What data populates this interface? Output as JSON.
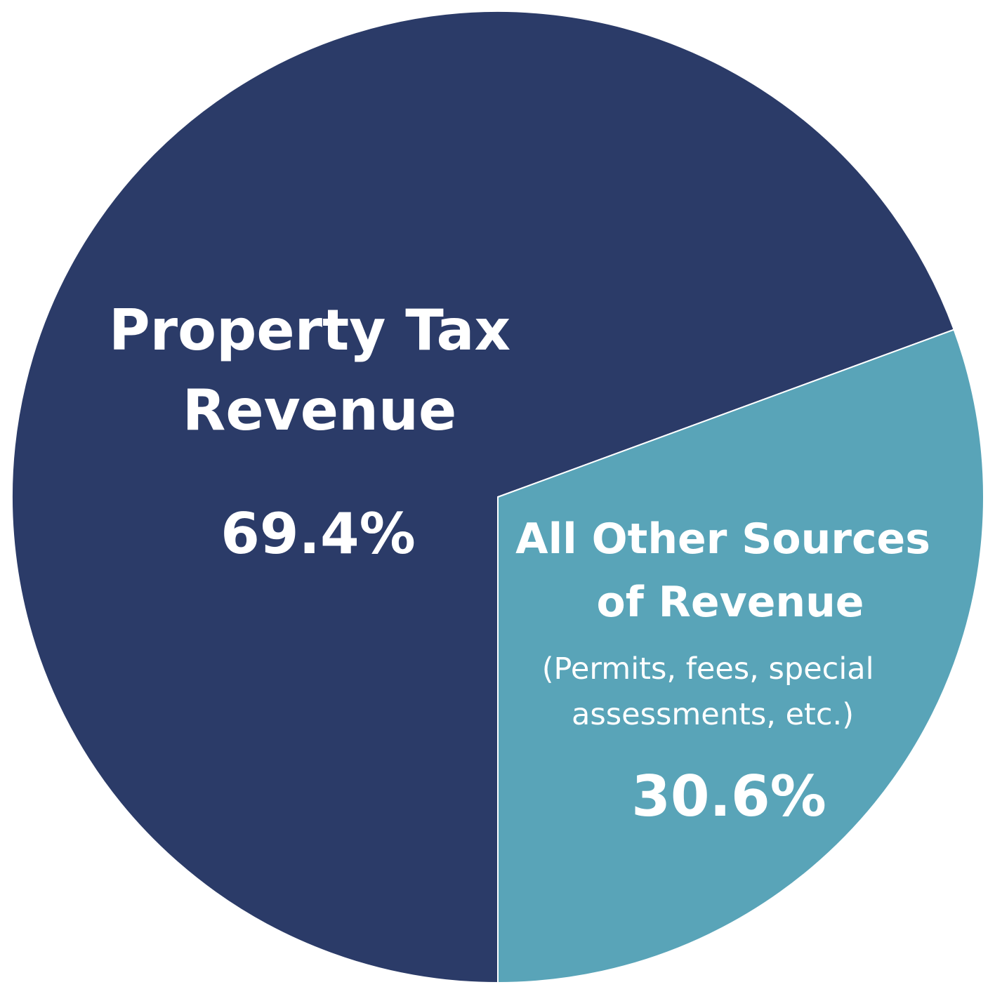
{
  "chart_data": {
    "type": "pie",
    "slices": [
      {
        "label_lines": [
          "Property Tax",
          "Revenue"
        ],
        "note_lines": [],
        "value": 69.4,
        "value_label": "69.4%",
        "color": "#2b3b68"
      },
      {
        "label_lines": [
          "All Other Sources",
          "of Revenue"
        ],
        "note_lines": [
          "(Permits, fees, special",
          "assessments, etc.)"
        ],
        "value": 30.6,
        "value_label": "30.6%",
        "color": "#59a4b8"
      }
    ],
    "start_angle_deg": 0,
    "direction": "clockwise",
    "background": "#ffffff",
    "border_color": "#ffffff"
  }
}
